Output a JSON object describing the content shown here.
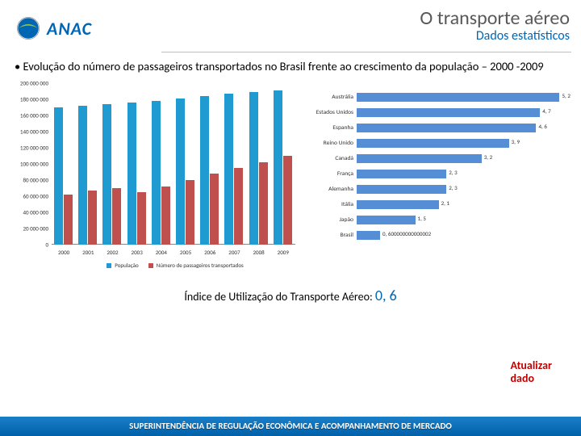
{
  "header": {
    "title": "O transporte aéreo",
    "subtitle": "Dados estatísticos",
    "logo_text": "ANAC"
  },
  "bullet": "• Evolução do número de passageiros transportados no Brasil frente ao crescimento da população – 2000 -2009",
  "bar_chart": {
    "type": "bar",
    "ymax": 200000000,
    "ytick_step": 20000000,
    "ytick_labels": [
      "0",
      "20 000 000",
      "40 000 000",
      "60 000 000",
      "80 000 000",
      "100 000 000",
      "120 000 000",
      "140 000 000",
      "160 000 000",
      "180 000 000",
      "200 000 000"
    ],
    "categories": [
      "2000",
      "2001",
      "2002",
      "2003",
      "2004",
      "2005",
      "2006",
      "2007",
      "2008",
      "2009"
    ],
    "series": [
      {
        "name": "População",
        "color": "#1f9bd1",
        "values": [
          170000000,
          172000000,
          174000000,
          176000000,
          178000000,
          181000000,
          184000000,
          187000000,
          189000000,
          191000000
        ]
      },
      {
        "name": "Número de passageiros transportados",
        "color": "#c0504d",
        "values": [
          62000000,
          67000000,
          70000000,
          65000000,
          72000000,
          80000000,
          88000000,
          95000000,
          102000000,
          110000000
        ]
      }
    ],
    "legend_prefix": "■ "
  },
  "hbar_chart": {
    "type": "hbar",
    "xmax": 5.5,
    "bar_color": "#558ed5",
    "rows": [
      {
        "label": "Austrália",
        "value": 5.2,
        "display": "5, 2"
      },
      {
        "label": "Estados Unidos",
        "value": 4.7,
        "display": "4, 7"
      },
      {
        "label": "Espanha",
        "value": 4.6,
        "display": "4, 6"
      },
      {
        "label": "Reino Unido",
        "value": 3.9,
        "display": "3, 9"
      },
      {
        "label": "Canadá",
        "value": 3.2,
        "display": "3, 2"
      },
      {
        "label": "França",
        "value": 2.3,
        "display": "2, 3"
      },
      {
        "label": "Alemanha",
        "value": 2.3,
        "display": "2, 3"
      },
      {
        "label": "Itália",
        "value": 2.1,
        "display": "2, 1"
      },
      {
        "label": "Japão",
        "value": 1.5,
        "display": "1, 5"
      },
      {
        "label": "Brasil",
        "value": 0.6,
        "display": "0, 600000000000002"
      }
    ]
  },
  "index_line": {
    "prefix": "Índice de Utilização do Transporte Aéreo: ",
    "value": "0, 6"
  },
  "update_note": "Atualizar\ndado",
  "footer_bar": "SUPERINTENDÊNCIA DE REGULAÇÃO ECONÔMICA E ACOMPANHAMENTO DE MERCADO"
}
